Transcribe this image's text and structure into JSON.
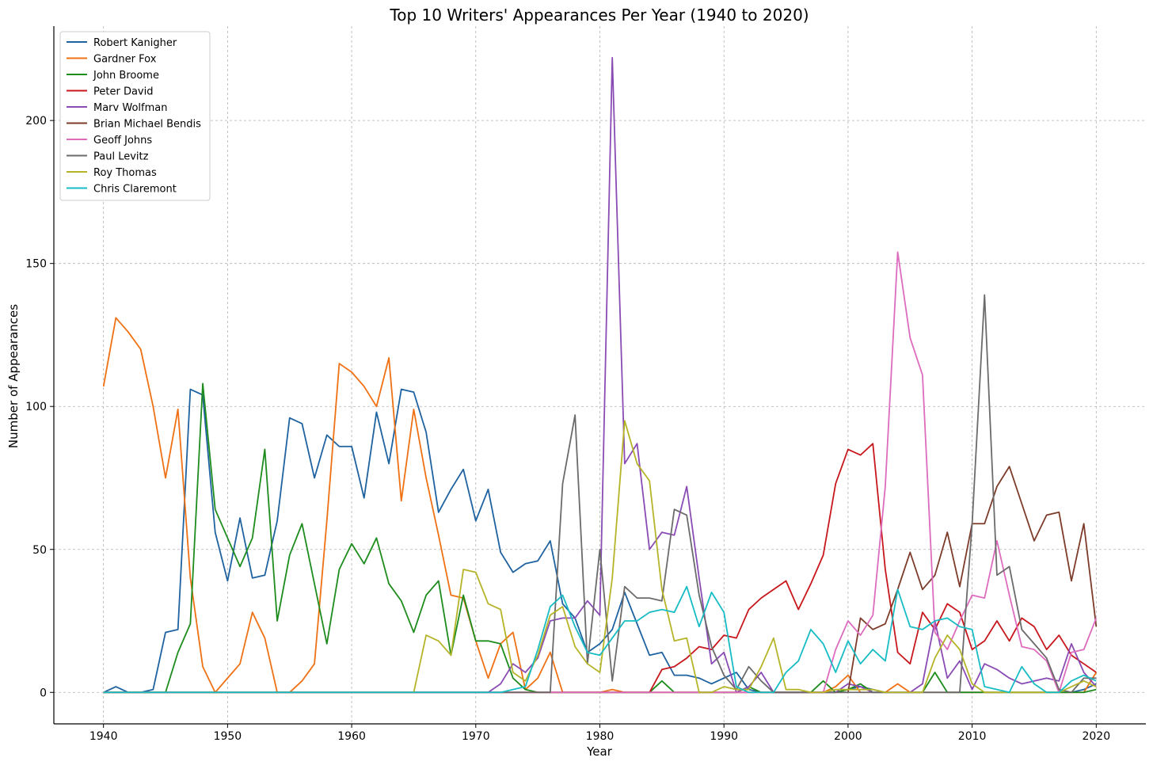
{
  "chart_data": {
    "type": "line",
    "title": "Top 10 Writers' Appearances Per Year (1940 to 2020)",
    "xlabel": "Year",
    "ylabel": "Number of Appearances",
    "xlim": [
      1936,
      2024
    ],
    "ylim": [
      -11,
      233
    ],
    "xticks": [
      1940,
      1950,
      1960,
      1970,
      1980,
      1990,
      2000,
      2010,
      2020
    ],
    "yticks": [
      0,
      50,
      100,
      150,
      200
    ],
    "grid": true,
    "legend_position": "top-left",
    "x": [
      1940,
      1941,
      1942,
      1943,
      1944,
      1945,
      1946,
      1947,
      1948,
      1949,
      1950,
      1951,
      1952,
      1953,
      1954,
      1955,
      1956,
      1957,
      1958,
      1959,
      1960,
      1961,
      1962,
      1963,
      1964,
      1965,
      1966,
      1967,
      1968,
      1969,
      1970,
      1971,
      1972,
      1973,
      1974,
      1975,
      1976,
      1977,
      1978,
      1979,
      1980,
      1981,
      1982,
      1983,
      1984,
      1985,
      1986,
      1987,
      1988,
      1989,
      1990,
      1991,
      1992,
      1993,
      1994,
      1995,
      1996,
      1997,
      1998,
      1999,
      2000,
      2001,
      2002,
      2003,
      2004,
      2005,
      2006,
      2007,
      2008,
      2009,
      2010,
      2011,
      2012,
      2013,
      2014,
      2015,
      2016,
      2017,
      2018,
      2019,
      2020
    ],
    "series": [
      {
        "name": "Robert Kanigher",
        "color": "#1f62a0",
        "values": [
          0,
          2,
          0,
          0,
          1,
          21,
          22,
          106,
          104,
          56,
          39,
          61,
          40,
          41,
          60,
          96,
          94,
          75,
          90,
          86,
          86,
          68,
          98,
          80,
          106,
          105,
          91,
          63,
          71,
          78,
          60,
          71,
          49,
          42,
          45,
          46,
          53,
          31,
          26,
          14,
          17,
          22,
          35,
          24,
          13,
          14,
          6,
          6,
          5,
          3,
          5,
          7,
          1,
          0,
          0,
          0,
          0,
          0,
          0,
          0,
          1,
          2,
          1,
          0,
          0,
          0,
          0,
          0,
          0,
          0,
          0,
          0,
          0,
          0,
          0,
          0,
          0,
          0,
          0,
          1,
          3
        ]
      },
      {
        "name": "Gardner Fox",
        "color": "#ef7114",
        "values": [
          107,
          131,
          126,
          120,
          100,
          75,
          99,
          40,
          9,
          0,
          5,
          10,
          28,
          19,
          0,
          0,
          4,
          10,
          60,
          115,
          112,
          107,
          100,
          117,
          67,
          99,
          75,
          55,
          34,
          33,
          18,
          5,
          17,
          21,
          1,
          5,
          14,
          0,
          0,
          0,
          0,
          1,
          0,
          0,
          0,
          0,
          0,
          0,
          0,
          0,
          0,
          0,
          0,
          0,
          0,
          0,
          0,
          0,
          0,
          2,
          6,
          0,
          0,
          0,
          3,
          0,
          0,
          0,
          0,
          0,
          0,
          0,
          0,
          0,
          0,
          0,
          0,
          0,
          0,
          0,
          7
        ]
      },
      {
        "name": "John Broome",
        "color": "#1d8c1d",
        "values": [
          0,
          0,
          0,
          0,
          0,
          0,
          14,
          24,
          108,
          64,
          54,
          44,
          54,
          85,
          25,
          48,
          59,
          38,
          17,
          43,
          52,
          45,
          54,
          38,
          32,
          21,
          34,
          39,
          13,
          34,
          18,
          18,
          17,
          5,
          1,
          0,
          0,
          0,
          0,
          0,
          0,
          0,
          0,
          0,
          0,
          4,
          0,
          0,
          0,
          0,
          0,
          0,
          2,
          0,
          0,
          0,
          0,
          0,
          4,
          0,
          1,
          3,
          0,
          0,
          0,
          0,
          0,
          7,
          0,
          0,
          0,
          0,
          0,
          0,
          0,
          0,
          0,
          0,
          0,
          0,
          1
        ]
      },
      {
        "name": "Peter David",
        "color": "#c8171c",
        "values": [
          0,
          0,
          0,
          0,
          0,
          0,
          0,
          0,
          0,
          0,
          0,
          0,
          0,
          0,
          0,
          0,
          0,
          0,
          0,
          0,
          0,
          0,
          0,
          0,
          0,
          0,
          0,
          0,
          0,
          0,
          0,
          0,
          0,
          0,
          0,
          0,
          0,
          0,
          0,
          0,
          0,
          0,
          0,
          0,
          0,
          8,
          9,
          12,
          16,
          15,
          20,
          19,
          29,
          33,
          36,
          39,
          29,
          38,
          48,
          73,
          85,
          83,
          87,
          43,
          14,
          10,
          28,
          22,
          31,
          28,
          15,
          18,
          25,
          18,
          26,
          23,
          15,
          20,
          13,
          10,
          7
        ]
      },
      {
        "name": "Marv Wolfman",
        "color": "#8a4bb4",
        "values": [
          0,
          0,
          0,
          0,
          0,
          0,
          0,
          0,
          0,
          0,
          0,
          0,
          0,
          0,
          0,
          0,
          0,
          0,
          0,
          0,
          0,
          0,
          0,
          0,
          0,
          0,
          0,
          0,
          0,
          0,
          0,
          0,
          3,
          10,
          7,
          12,
          25,
          26,
          26,
          32,
          27,
          222,
          80,
          87,
          50,
          56,
          55,
          72,
          40,
          10,
          14,
          0,
          2,
          7,
          0,
          0,
          0,
          0,
          0,
          0,
          3,
          2,
          0,
          0,
          0,
          0,
          3,
          25,
          5,
          11,
          1,
          10,
          8,
          5,
          3,
          4,
          5,
          4,
          17,
          7,
          2
        ]
      },
      {
        "name": "Brian Michael Bendis",
        "color": "#7d3b2a",
        "values": [
          0,
          0,
          0,
          0,
          0,
          0,
          0,
          0,
          0,
          0,
          0,
          0,
          0,
          0,
          0,
          0,
          0,
          0,
          0,
          0,
          0,
          0,
          0,
          0,
          0,
          0,
          0,
          0,
          0,
          0,
          0,
          0,
          0,
          0,
          0,
          0,
          0,
          0,
          0,
          0,
          0,
          0,
          0,
          0,
          0,
          0,
          0,
          0,
          0,
          0,
          0,
          0,
          0,
          0,
          0,
          0,
          0,
          0,
          0,
          0,
          0,
          26,
          22,
          24,
          36,
          49,
          36,
          41,
          56,
          37,
          59,
          59,
          72,
          79,
          66,
          53,
          62,
          63,
          39,
          59,
          23
        ]
      },
      {
        "name": "Geoff Johns",
        "color": "#dd6cbe",
        "values": [
          0,
          0,
          0,
          0,
          0,
          0,
          0,
          0,
          0,
          0,
          0,
          0,
          0,
          0,
          0,
          0,
          0,
          0,
          0,
          0,
          0,
          0,
          0,
          0,
          0,
          0,
          0,
          0,
          0,
          0,
          0,
          0,
          0,
          0,
          0,
          0,
          0,
          0,
          0,
          0,
          0,
          0,
          0,
          0,
          0,
          0,
          0,
          0,
          0,
          0,
          0,
          0,
          0,
          0,
          0,
          0,
          0,
          0,
          0,
          15,
          25,
          20,
          27,
          72,
          154,
          124,
          111,
          21,
          15,
          25,
          34,
          33,
          53,
          34,
          16,
          15,
          11,
          0,
          14,
          15,
          26
        ]
      },
      {
        "name": "Paul Levitz",
        "color": "#6b6b6b",
        "values": [
          0,
          0,
          0,
          0,
          0,
          0,
          0,
          0,
          0,
          0,
          0,
          0,
          0,
          0,
          0,
          0,
          0,
          0,
          0,
          0,
          0,
          0,
          0,
          0,
          0,
          0,
          0,
          0,
          0,
          0,
          0,
          0,
          0,
          0,
          0,
          0,
          0,
          73,
          97,
          10,
          50,
          4,
          37,
          33,
          33,
          32,
          64,
          62,
          34,
          16,
          6,
          1,
          9,
          4,
          0,
          0,
          0,
          0,
          0,
          0,
          0,
          0,
          0,
          0,
          0,
          0,
          0,
          0,
          0,
          0,
          59,
          139,
          41,
          44,
          22,
          17,
          12,
          1,
          0,
          5,
          5
        ]
      },
      {
        "name": "Roy Thomas",
        "color": "#b5b428",
        "values": [
          0,
          0,
          0,
          0,
          0,
          0,
          0,
          0,
          0,
          0,
          0,
          0,
          0,
          0,
          0,
          0,
          0,
          0,
          0,
          0,
          0,
          0,
          0,
          0,
          0,
          0,
          20,
          18,
          13,
          43,
          42,
          31,
          29,
          7,
          4,
          13,
          27,
          30,
          16,
          10,
          7,
          40,
          95,
          80,
          74,
          36,
          18,
          19,
          0,
          0,
          2,
          1,
          1,
          9,
          19,
          1,
          1,
          0,
          0,
          1,
          1,
          1,
          1,
          0,
          0,
          0,
          0,
          12,
          20,
          15,
          3,
          0,
          0,
          0,
          0,
          0,
          0,
          0,
          2,
          4,
          2
        ]
      },
      {
        "name": "Chris Claremont",
        "color": "#17bcc4",
        "values": [
          0,
          0,
          0,
          0,
          0,
          0,
          0,
          0,
          0,
          0,
          0,
          0,
          0,
          0,
          0,
          0,
          0,
          0,
          0,
          0,
          0,
          0,
          0,
          0,
          0,
          0,
          0,
          0,
          0,
          0,
          0,
          0,
          0,
          1,
          2,
          15,
          30,
          34,
          23,
          14,
          13,
          19,
          25,
          25,
          28,
          29,
          28,
          37,
          23,
          35,
          28,
          2,
          0,
          0,
          0,
          7,
          11,
          22,
          17,
          7,
          18,
          10,
          15,
          11,
          36,
          23,
          22,
          25,
          26,
          23,
          22,
          2,
          1,
          0,
          9,
          3,
          0,
          0,
          4,
          6,
          4
        ]
      }
    ]
  }
}
